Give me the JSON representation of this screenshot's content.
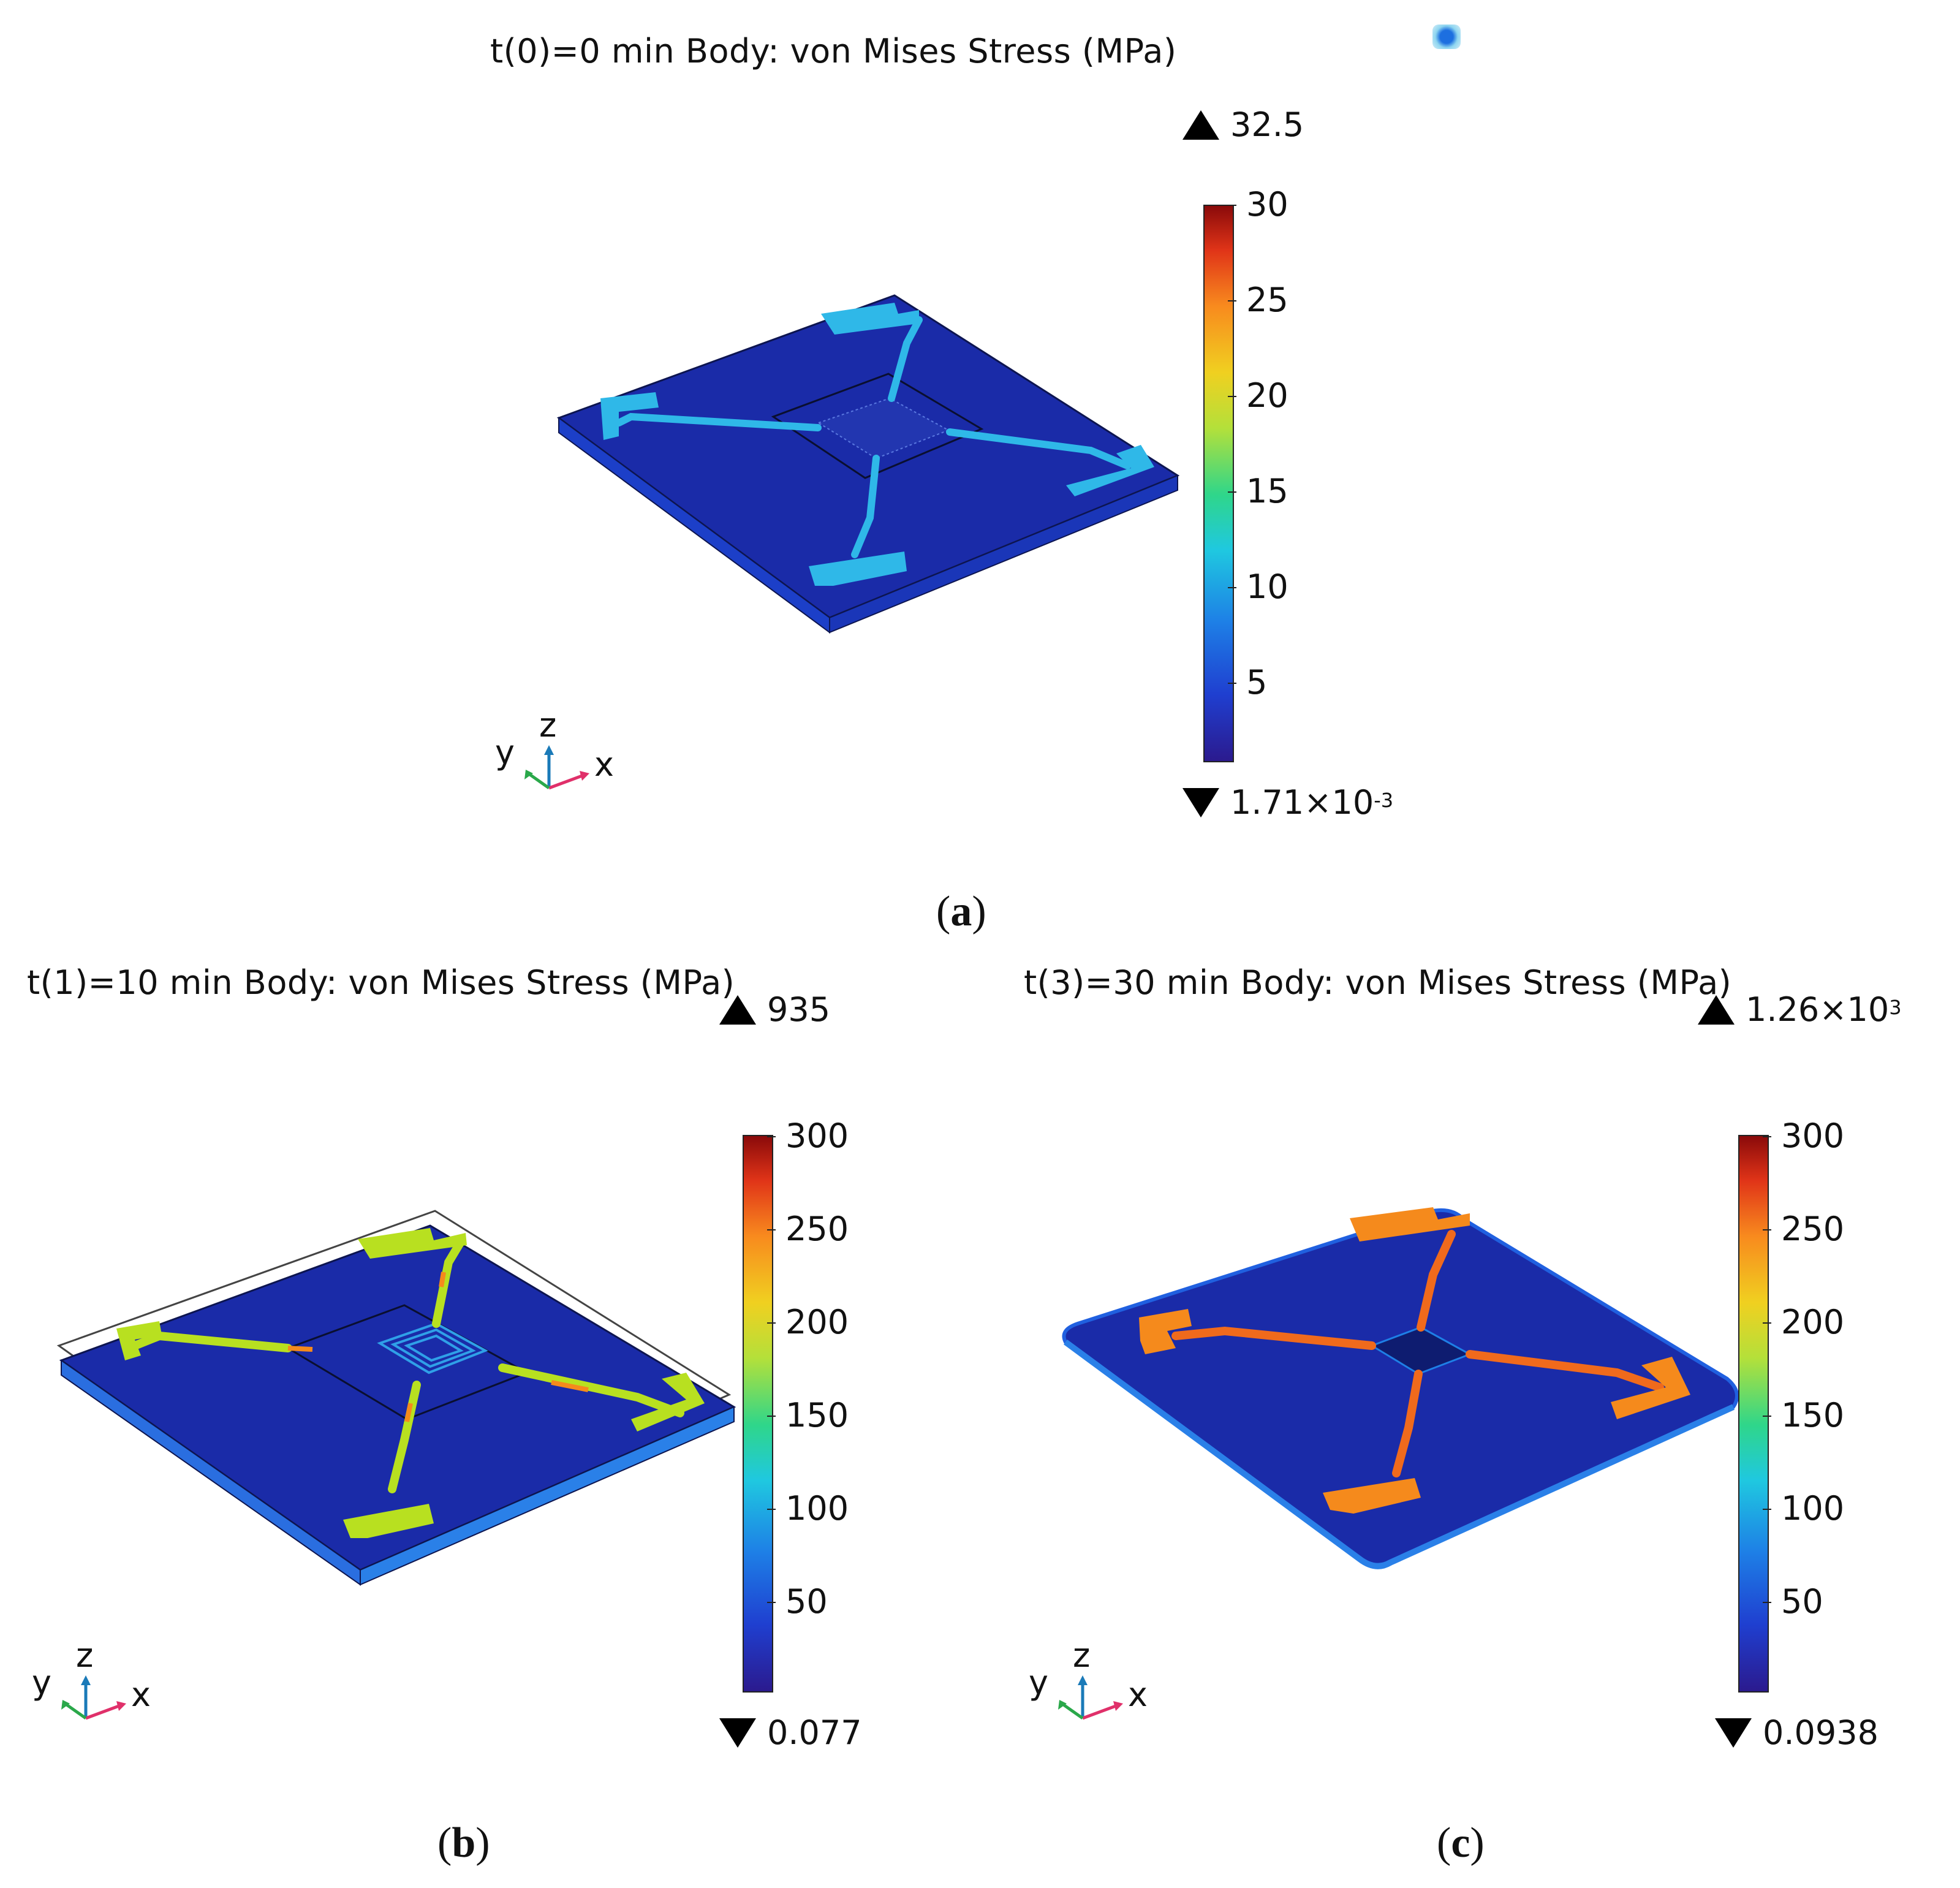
{
  "panels": [
    {
      "id": "a",
      "title": "t(0)=0 min Body: von Mises Stress (MPa)",
      "label_paren_open": "(",
      "label_letter": "a",
      "label_paren_close": ")",
      "max_value": "32.5",
      "min_base": "1.71×10",
      "min_exp": "-3",
      "ticks": [
        "30",
        "25",
        "20",
        "15",
        "10",
        "5"
      ],
      "colorbar_range": [
        0,
        30
      ],
      "axes": {
        "x": "x",
        "y": "y",
        "z": "z"
      }
    },
    {
      "id": "b",
      "title": "t(1)=10 min Body: von Mises Stress (MPa)",
      "label_paren_open": "(",
      "label_letter": "b",
      "label_paren_close": ")",
      "max_value": "935",
      "min_value": "0.077",
      "ticks": [
        "300",
        "250",
        "200",
        "150",
        "100",
        "50"
      ],
      "colorbar_range": [
        0,
        300
      ],
      "axes": {
        "x": "x",
        "y": "y",
        "z": "z"
      }
    },
    {
      "id": "c",
      "title": "t(3)=30 min Body: von Mises Stress (MPa)",
      "label_paren_open": "(",
      "label_letter": "c",
      "label_paren_close": ")",
      "max_base": "1.26×10",
      "max_exp": "3",
      "min_value": "0.0938",
      "ticks": [
        "300",
        "250",
        "200",
        "150",
        "100",
        "50"
      ],
      "colorbar_range": [
        0,
        300
      ],
      "axes": {
        "x": "x",
        "y": "y",
        "z": "z"
      }
    }
  ],
  "colors": {
    "substrate": "#1a2ba8",
    "substrate_side": "#1c3fc8",
    "trace_a": "#2fb8e8",
    "trace_b": "#b8e020",
    "trace_c": "#f58a1c"
  }
}
